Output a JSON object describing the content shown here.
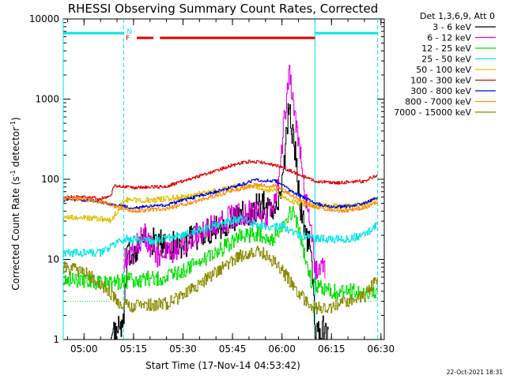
{
  "chart_data": {
    "type": "line",
    "title": "RHESSI Observing Summary Count Rates, Corrected",
    "xlabel": "Start Time (17-Nov-14 04:53:42)",
    "ylabel": "Corrected Count Rate (s",
    "ylabel_sup": "-1",
    "ylabel_tail": " detector",
    "ylabel_tail_sup": "-1",
    "ylabel_end": ")",
    "y_scale": "log",
    "ylim": [
      1,
      10000
    ],
    "xlim": [
      "04:53:42",
      "06:31:00"
    ],
    "y_ticks": [
      {
        "v": 1,
        "label": "1"
      },
      {
        "v": 10,
        "label": "10"
      },
      {
        "v": 100,
        "label": "100"
      },
      {
        "v": 1000,
        "label": "1000"
      },
      {
        "v": 10000,
        "label": "10000"
      }
    ],
    "x_ticks": [
      {
        "t": "05:00",
        "label": "05:00"
      },
      {
        "t": "05:15",
        "label": "05:15"
      },
      {
        "t": "05:30",
        "label": "05:30"
      },
      {
        "t": "05:45",
        "label": "05:45"
      },
      {
        "t": "06:00",
        "label": "06:00"
      },
      {
        "t": "06:15",
        "label": "06:15"
      },
      {
        "t": "06:30",
        "label": "06:30"
      }
    ],
    "legend_header": "Det 1,3,6,9, Att 0",
    "legend_position": "right",
    "timestamp": "22-Oct-2021 18:31",
    "flags": {
      "night": {
        "label": "N",
        "color": "#00e5e5",
        "intervals": [
          [
            "04:53:42",
            "05:12:00"
          ],
          [
            "06:10:00",
            "06:29:00"
          ]
        ]
      },
      "flare": {
        "label": "F",
        "color": "#e00000",
        "intervals": [
          [
            "05:16:00",
            "05:21:00"
          ],
          [
            "05:23:00",
            "06:10:00"
          ]
        ]
      },
      "night_boundaries": [
        "04:53:42",
        "05:12:00",
        "06:10:00",
        "06:29:00"
      ]
    },
    "series": [
      {
        "name": "3 - 6 keV",
        "color": "#000000",
        "points": [
          [
            "05:08",
            1
          ],
          [
            "05:12",
            1.6
          ],
          [
            "05:13",
            10
          ],
          [
            "05:18",
            18
          ],
          [
            "05:25",
            15
          ],
          [
            "05:30",
            15
          ],
          [
            "05:35",
            20
          ],
          [
            "05:40",
            26
          ],
          [
            "05:45",
            30
          ],
          [
            "05:50",
            40
          ],
          [
            "05:55",
            50
          ],
          [
            "05:58",
            42
          ],
          [
            "06:00",
            80
          ],
          [
            "06:02",
            850
          ],
          [
            "06:04",
            200
          ],
          [
            "06:06",
            32
          ],
          [
            "06:09",
            12
          ],
          [
            "06:10",
            1
          ],
          [
            "06:13",
            1.4
          ],
          [
            "06:14",
            1
          ]
        ]
      },
      {
        "name": "6 - 12 keV",
        "color": "#e000e0",
        "points": [
          [
            "05:12",
            10
          ],
          [
            "05:15",
            12
          ],
          [
            "05:18",
            22
          ],
          [
            "05:22",
            11
          ],
          [
            "05:27",
            12
          ],
          [
            "05:30",
            16
          ],
          [
            "05:35",
            22
          ],
          [
            "05:40",
            28
          ],
          [
            "05:45",
            34
          ],
          [
            "05:50",
            38
          ],
          [
            "05:55",
            35
          ],
          [
            "05:58",
            50
          ],
          [
            "06:00",
            300
          ],
          [
            "06:02",
            2100
          ],
          [
            "06:03",
            1200
          ],
          [
            "06:05",
            300
          ],
          [
            "06:07",
            60
          ],
          [
            "06:09",
            20
          ],
          [
            "06:10",
            8
          ],
          [
            "06:13",
            7
          ]
        ]
      },
      {
        "name": "12 - 25 keV",
        "color": "#00e000",
        "points": [
          [
            "04:53:42",
            6
          ],
          [
            "05:05",
            5
          ],
          [
            "05:15",
            5.5
          ],
          [
            "05:25",
            6
          ],
          [
            "05:32",
            8
          ],
          [
            "05:40",
            12
          ],
          [
            "05:47",
            19
          ],
          [
            "05:53",
            21
          ],
          [
            "05:57",
            18
          ],
          [
            "06:00",
            28
          ],
          [
            "06:03",
            40
          ],
          [
            "06:05",
            25
          ],
          [
            "06:07",
            10
          ],
          [
            "06:09",
            5
          ],
          [
            "06:15",
            4
          ],
          [
            "06:20",
            4
          ],
          [
            "06:29",
            4
          ]
        ]
      },
      {
        "name": "25 - 50 keV",
        "color": "#00e5e5",
        "points": [
          [
            "04:53:42",
            12
          ],
          [
            "05:05",
            12
          ],
          [
            "05:12",
            18
          ],
          [
            "05:20",
            17
          ],
          [
            "05:30",
            20
          ],
          [
            "05:40",
            27
          ],
          [
            "05:47",
            32
          ],
          [
            "05:52",
            28
          ],
          [
            "05:57",
            25
          ],
          [
            "06:00",
            26
          ],
          [
            "06:05",
            20
          ],
          [
            "06:10",
            18
          ],
          [
            "06:20",
            18
          ],
          [
            "06:25",
            20
          ],
          [
            "06:29",
            28
          ]
        ]
      },
      {
        "name": "50 - 100 keV",
        "color": "#e0c000",
        "points": [
          [
            "04:53:42",
            33
          ],
          [
            "05:00",
            33
          ],
          [
            "05:05",
            32
          ],
          [
            "05:08",
            30
          ],
          [
            "05:12",
            55
          ],
          [
            "05:20",
            55
          ],
          [
            "05:30",
            60
          ],
          [
            "05:40",
            72
          ],
          [
            "05:47",
            83
          ],
          [
            "05:53",
            80
          ],
          [
            "05:58",
            70
          ],
          [
            "06:03",
            52
          ],
          [
            "06:10",
            47
          ],
          [
            "06:20",
            46
          ],
          [
            "06:25",
            48
          ],
          [
            "06:29",
            55
          ]
        ]
      },
      {
        "name": "100 - 300 keV",
        "color": "#e00000",
        "points": [
          [
            "04:53:42",
            60
          ],
          [
            "05:00",
            60
          ],
          [
            "05:05",
            57
          ],
          [
            "05:08",
            62
          ],
          [
            "05:09",
            83
          ],
          [
            "05:15",
            78
          ],
          [
            "05:25",
            82
          ],
          [
            "05:35",
            110
          ],
          [
            "05:45",
            150
          ],
          [
            "05:50",
            168
          ],
          [
            "05:55",
            160
          ],
          [
            "06:00",
            140
          ],
          [
            "06:05",
            115
          ],
          [
            "06:10",
            95
          ],
          [
            "06:15",
            90
          ],
          [
            "06:20",
            92
          ],
          [
            "06:25",
            95
          ],
          [
            "06:29",
            115
          ]
        ]
      },
      {
        "name": "300 - 800 keV",
        "color": "#0000e0",
        "points": [
          [
            "04:53:42",
            55
          ],
          [
            "05:00",
            55
          ],
          [
            "05:05",
            52
          ],
          [
            "05:10",
            47
          ],
          [
            "05:15",
            44
          ],
          [
            "05:25",
            48
          ],
          [
            "05:35",
            62
          ],
          [
            "05:45",
            80
          ],
          [
            "05:52",
            98
          ],
          [
            "05:58",
            95
          ],
          [
            "06:03",
            70
          ],
          [
            "06:10",
            50
          ],
          [
            "06:15",
            45
          ],
          [
            "06:20",
            46
          ],
          [
            "06:25",
            50
          ],
          [
            "06:29",
            60
          ]
        ]
      },
      {
        "name": "800 - 7000 keV",
        "color": "#ff8c00",
        "points": [
          [
            "04:53:42",
            58
          ],
          [
            "05:00",
            56
          ],
          [
            "05:05",
            52
          ],
          [
            "05:10",
            45
          ],
          [
            "05:15",
            40
          ],
          [
            "05:25",
            43
          ],
          [
            "05:35",
            55
          ],
          [
            "05:45",
            72
          ],
          [
            "05:52",
            85
          ],
          [
            "05:58",
            82
          ],
          [
            "06:03",
            62
          ],
          [
            "06:10",
            45
          ],
          [
            "06:15",
            40
          ],
          [
            "06:20",
            41
          ],
          [
            "06:25",
            44
          ],
          [
            "06:29",
            52
          ]
        ]
      },
      {
        "name": "7000 - 15000 keV",
        "color": "#8b8b00",
        "points": [
          [
            "04:53:42",
            8
          ],
          [
            "05:00",
            7
          ],
          [
            "05:05",
            5
          ],
          [
            "05:10",
            3
          ],
          [
            "05:15",
            2.6
          ],
          [
            "05:25",
            2.8
          ],
          [
            "05:30",
            3.5
          ],
          [
            "05:40",
            7
          ],
          [
            "05:47",
            11
          ],
          [
            "05:53",
            13
          ],
          [
            "05:58",
            9
          ],
          [
            "06:03",
            5
          ],
          [
            "06:07",
            3
          ],
          [
            "06:10",
            2.5
          ],
          [
            "06:15",
            2.5
          ],
          [
            "06:20",
            3
          ],
          [
            "06:25",
            3.5
          ],
          [
            "06:29",
            6
          ]
        ]
      }
    ],
    "extra_lines": {
      "green_floor": {
        "value": 3,
        "color": "#00e000",
        "intervals": [
          [
            "04:53:42",
            "05:08:00"
          ],
          [
            "06:24:00",
            "06:29:00"
          ]
        ]
      }
    }
  }
}
